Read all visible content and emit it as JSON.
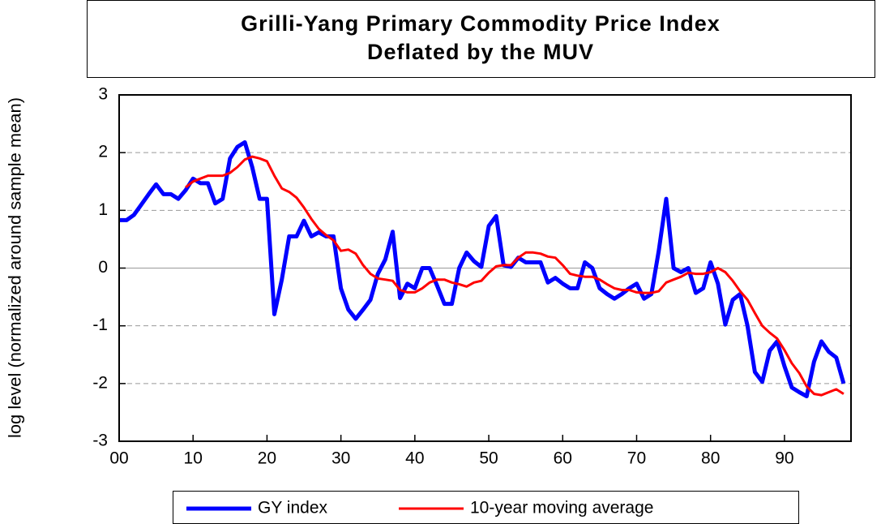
{
  "chart_data": {
    "type": "line",
    "title": [
      "Grilli-Yang Primary Commodity Price Index",
      "Deflated by the MUV"
    ],
    "y_label": "log level (normalized around sample mean)",
    "x": [
      0,
      1,
      2,
      3,
      4,
      5,
      6,
      7,
      8,
      9,
      10,
      11,
      12,
      13,
      14,
      15,
      16,
      17,
      18,
      19,
      20,
      21,
      22,
      23,
      24,
      25,
      26,
      27,
      28,
      29,
      30,
      31,
      32,
      33,
      34,
      35,
      36,
      37,
      38,
      39,
      40,
      41,
      42,
      43,
      44,
      45,
      46,
      47,
      48,
      49,
      50,
      51,
      52,
      53,
      54,
      55,
      56,
      57,
      58,
      59,
      60,
      61,
      62,
      63,
      64,
      65,
      66,
      67,
      68,
      69,
      70,
      71,
      72,
      73,
      74,
      75,
      76,
      77,
      78,
      79,
      80,
      81,
      82,
      83,
      84,
      85,
      86,
      87,
      88,
      89,
      90,
      91,
      92,
      93,
      94,
      95,
      96,
      97,
      98
    ],
    "series": [
      {
        "name": "GY index",
        "color": "#0000ff",
        "values": [
          0.83,
          0.83,
          0.92,
          1.1,
          1.28,
          1.45,
          1.28,
          1.28,
          1.2,
          1.35,
          1.55,
          1.47,
          1.47,
          1.12,
          1.2,
          1.9,
          2.1,
          2.18,
          1.75,
          1.2,
          1.2,
          -0.8,
          -0.2,
          0.55,
          0.55,
          0.82,
          0.55,
          0.62,
          0.55,
          0.55,
          -0.35,
          -0.72,
          -0.88,
          -0.72,
          -0.55,
          -0.1,
          0.15,
          0.63,
          -0.52,
          -0.27,
          -0.35,
          0.0,
          0.0,
          -0.3,
          -0.62,
          -0.62,
          0.0,
          0.27,
          0.12,
          0.02,
          0.73,
          0.9,
          0.05,
          0.02,
          0.18,
          0.1,
          0.1,
          0.1,
          -0.25,
          -0.17,
          -0.27,
          -0.35,
          -0.35,
          0.1,
          0.0,
          -0.35,
          -0.45,
          -0.53,
          -0.45,
          -0.35,
          -0.27,
          -0.53,
          -0.45,
          0.3,
          1.2,
          0.0,
          -0.07,
          0.0,
          -0.43,
          -0.35,
          0.1,
          -0.27,
          -0.98,
          -0.55,
          -0.45,
          -1.0,
          -1.8,
          -1.97,
          -1.43,
          -1.27,
          -1.7,
          -2.07,
          -2.15,
          -2.22,
          -1.62,
          -1.27,
          -1.45,
          -1.55,
          -2.0
        ]
      },
      {
        "name": "10-year moving average",
        "color": "#ff0000",
        "values": [
          null,
          null,
          null,
          null,
          null,
          null,
          null,
          null,
          null,
          1.4,
          1.5,
          1.55,
          1.6,
          1.6,
          1.6,
          1.65,
          1.75,
          1.88,
          1.93,
          1.9,
          1.85,
          1.6,
          1.38,
          1.32,
          1.22,
          1.05,
          0.85,
          0.68,
          0.57,
          0.48,
          0.3,
          0.32,
          0.25,
          0.05,
          -0.1,
          -0.18,
          -0.2,
          -0.22,
          -0.38,
          -0.42,
          -0.42,
          -0.35,
          -0.25,
          -0.2,
          -0.2,
          -0.25,
          -0.28,
          -0.32,
          -0.25,
          -0.22,
          -0.08,
          0.03,
          0.05,
          0.05,
          0.18,
          0.27,
          0.27,
          0.25,
          0.2,
          0.18,
          0.05,
          -0.1,
          -0.13,
          -0.15,
          -0.15,
          -0.2,
          -0.28,
          -0.35,
          -0.38,
          -0.38,
          -0.42,
          -0.43,
          -0.43,
          -0.4,
          -0.25,
          -0.2,
          -0.15,
          -0.08,
          -0.1,
          -0.1,
          -0.07,
          0.0,
          -0.07,
          -0.22,
          -0.4,
          -0.55,
          -0.78,
          -1.0,
          -1.12,
          -1.22,
          -1.42,
          -1.65,
          -1.82,
          -2.05,
          -2.18,
          -2.2,
          -2.15,
          -2.1,
          -2.18
        ]
      }
    ],
    "xlim": [
      0,
      99
    ],
    "xticks": [
      {
        "value": 0,
        "label": "00"
      },
      10,
      20,
      30,
      40,
      50,
      60,
      70,
      80,
      90
    ],
    "ylim": [
      -3,
      3
    ],
    "yticks": [
      -3,
      -2,
      -1,
      0,
      1,
      2,
      3
    ],
    "grid": true,
    "legend": "bottom"
  }
}
